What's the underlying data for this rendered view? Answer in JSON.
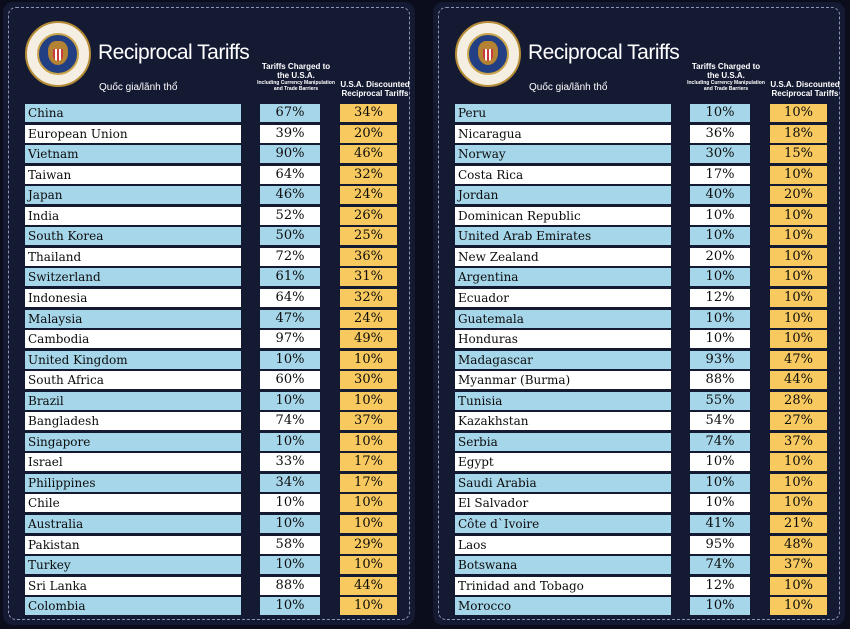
{
  "chart_data": [
    {
      "type": "table",
      "title": "Reciprocal Tariffs",
      "columns": [
        "Quốc gia/lãnh thổ",
        "Tariffs Charged to the U.S.A.",
        "U.S.A. Discounted Reciprocal Tariffs"
      ],
      "column_note": "Including Currency Manipulation and Trade Barriers",
      "rows": [
        [
          "China",
          "67%",
          "34%"
        ],
        [
          "European Union",
          "39%",
          "20%"
        ],
        [
          "Vietnam",
          "90%",
          "46%"
        ],
        [
          "Taiwan",
          "64%",
          "32%"
        ],
        [
          "Japan",
          "46%",
          "24%"
        ],
        [
          "India",
          "52%",
          "26%"
        ],
        [
          "South Korea",
          "50%",
          "25%"
        ],
        [
          "Thailand",
          "72%",
          "36%"
        ],
        [
          "Switzerland",
          "61%",
          "31%"
        ],
        [
          "Indonesia",
          "64%",
          "32%"
        ],
        [
          "Malaysia",
          "47%",
          "24%"
        ],
        [
          "Cambodia",
          "97%",
          "49%"
        ],
        [
          "United Kingdom",
          "10%",
          "10%"
        ],
        [
          "South Africa",
          "60%",
          "30%"
        ],
        [
          "Brazil",
          "10%",
          "10%"
        ],
        [
          "Bangladesh",
          "74%",
          "37%"
        ],
        [
          "Singapore",
          "10%",
          "10%"
        ],
        [
          "Israel",
          "33%",
          "17%"
        ],
        [
          "Philippines",
          "34%",
          "17%"
        ],
        [
          "Chile",
          "10%",
          "10%"
        ],
        [
          "Australia",
          "10%",
          "10%"
        ],
        [
          "Pakistan",
          "58%",
          "29%"
        ],
        [
          "Turkey",
          "10%",
          "10%"
        ],
        [
          "Sri Lanka",
          "88%",
          "44%"
        ],
        [
          "Colombia",
          "10%",
          "10%"
        ]
      ]
    },
    {
      "type": "table",
      "title": "Reciprocal Tariffs",
      "columns": [
        "Quốc gia/lãnh thổ",
        "Tariffs Charged to the U.S.A.",
        "U.S.A. Discounted Reciprocal Tariffs"
      ],
      "column_note": "Including Currency Manipulation and Trade Barriers",
      "rows": [
        [
          "Peru",
          "10%",
          "10%"
        ],
        [
          "Nicaragua",
          "36%",
          "18%"
        ],
        [
          "Norway",
          "30%",
          "15%"
        ],
        [
          "Costa Rica",
          "17%",
          "10%"
        ],
        [
          "Jordan",
          "40%",
          "20%"
        ],
        [
          "Dominican Republic",
          "10%",
          "10%"
        ],
        [
          "United Arab Emirates",
          "10%",
          "10%"
        ],
        [
          "New Zealand",
          "20%",
          "10%"
        ],
        [
          "Argentina",
          "10%",
          "10%"
        ],
        [
          "Ecuador",
          "12%",
          "10%"
        ],
        [
          "Guatemala",
          "10%",
          "10%"
        ],
        [
          "Honduras",
          "10%",
          "10%"
        ],
        [
          "Madagascar",
          "93%",
          "47%"
        ],
        [
          "Myanmar (Burma)",
          "88%",
          "44%"
        ],
        [
          "Tunisia",
          "55%",
          "28%"
        ],
        [
          "Kazakhstan",
          "54%",
          "27%"
        ],
        [
          "Serbia",
          "74%",
          "37%"
        ],
        [
          "Egypt",
          "10%",
          "10%"
        ],
        [
          "Saudi Arabia",
          "10%",
          "10%"
        ],
        [
          "El Salvador",
          "10%",
          "10%"
        ],
        [
          "Côte d`Ivoire",
          "41%",
          "21%"
        ],
        [
          "Laos",
          "95%",
          "48%"
        ],
        [
          "Botswana",
          "74%",
          "37%"
        ],
        [
          "Trinidad and Tobago",
          "12%",
          "10%"
        ],
        [
          "Morocco",
          "10%",
          "10%"
        ]
      ]
    }
  ],
  "seal_text": "SEAL OF THE PRESIDENT OF THE UNITED STATES",
  "colors": {
    "background": "#151a33",
    "row_blue": "#a6d6ea",
    "row_white": "#ffffff",
    "discount_yellow": "#f7c95e"
  }
}
